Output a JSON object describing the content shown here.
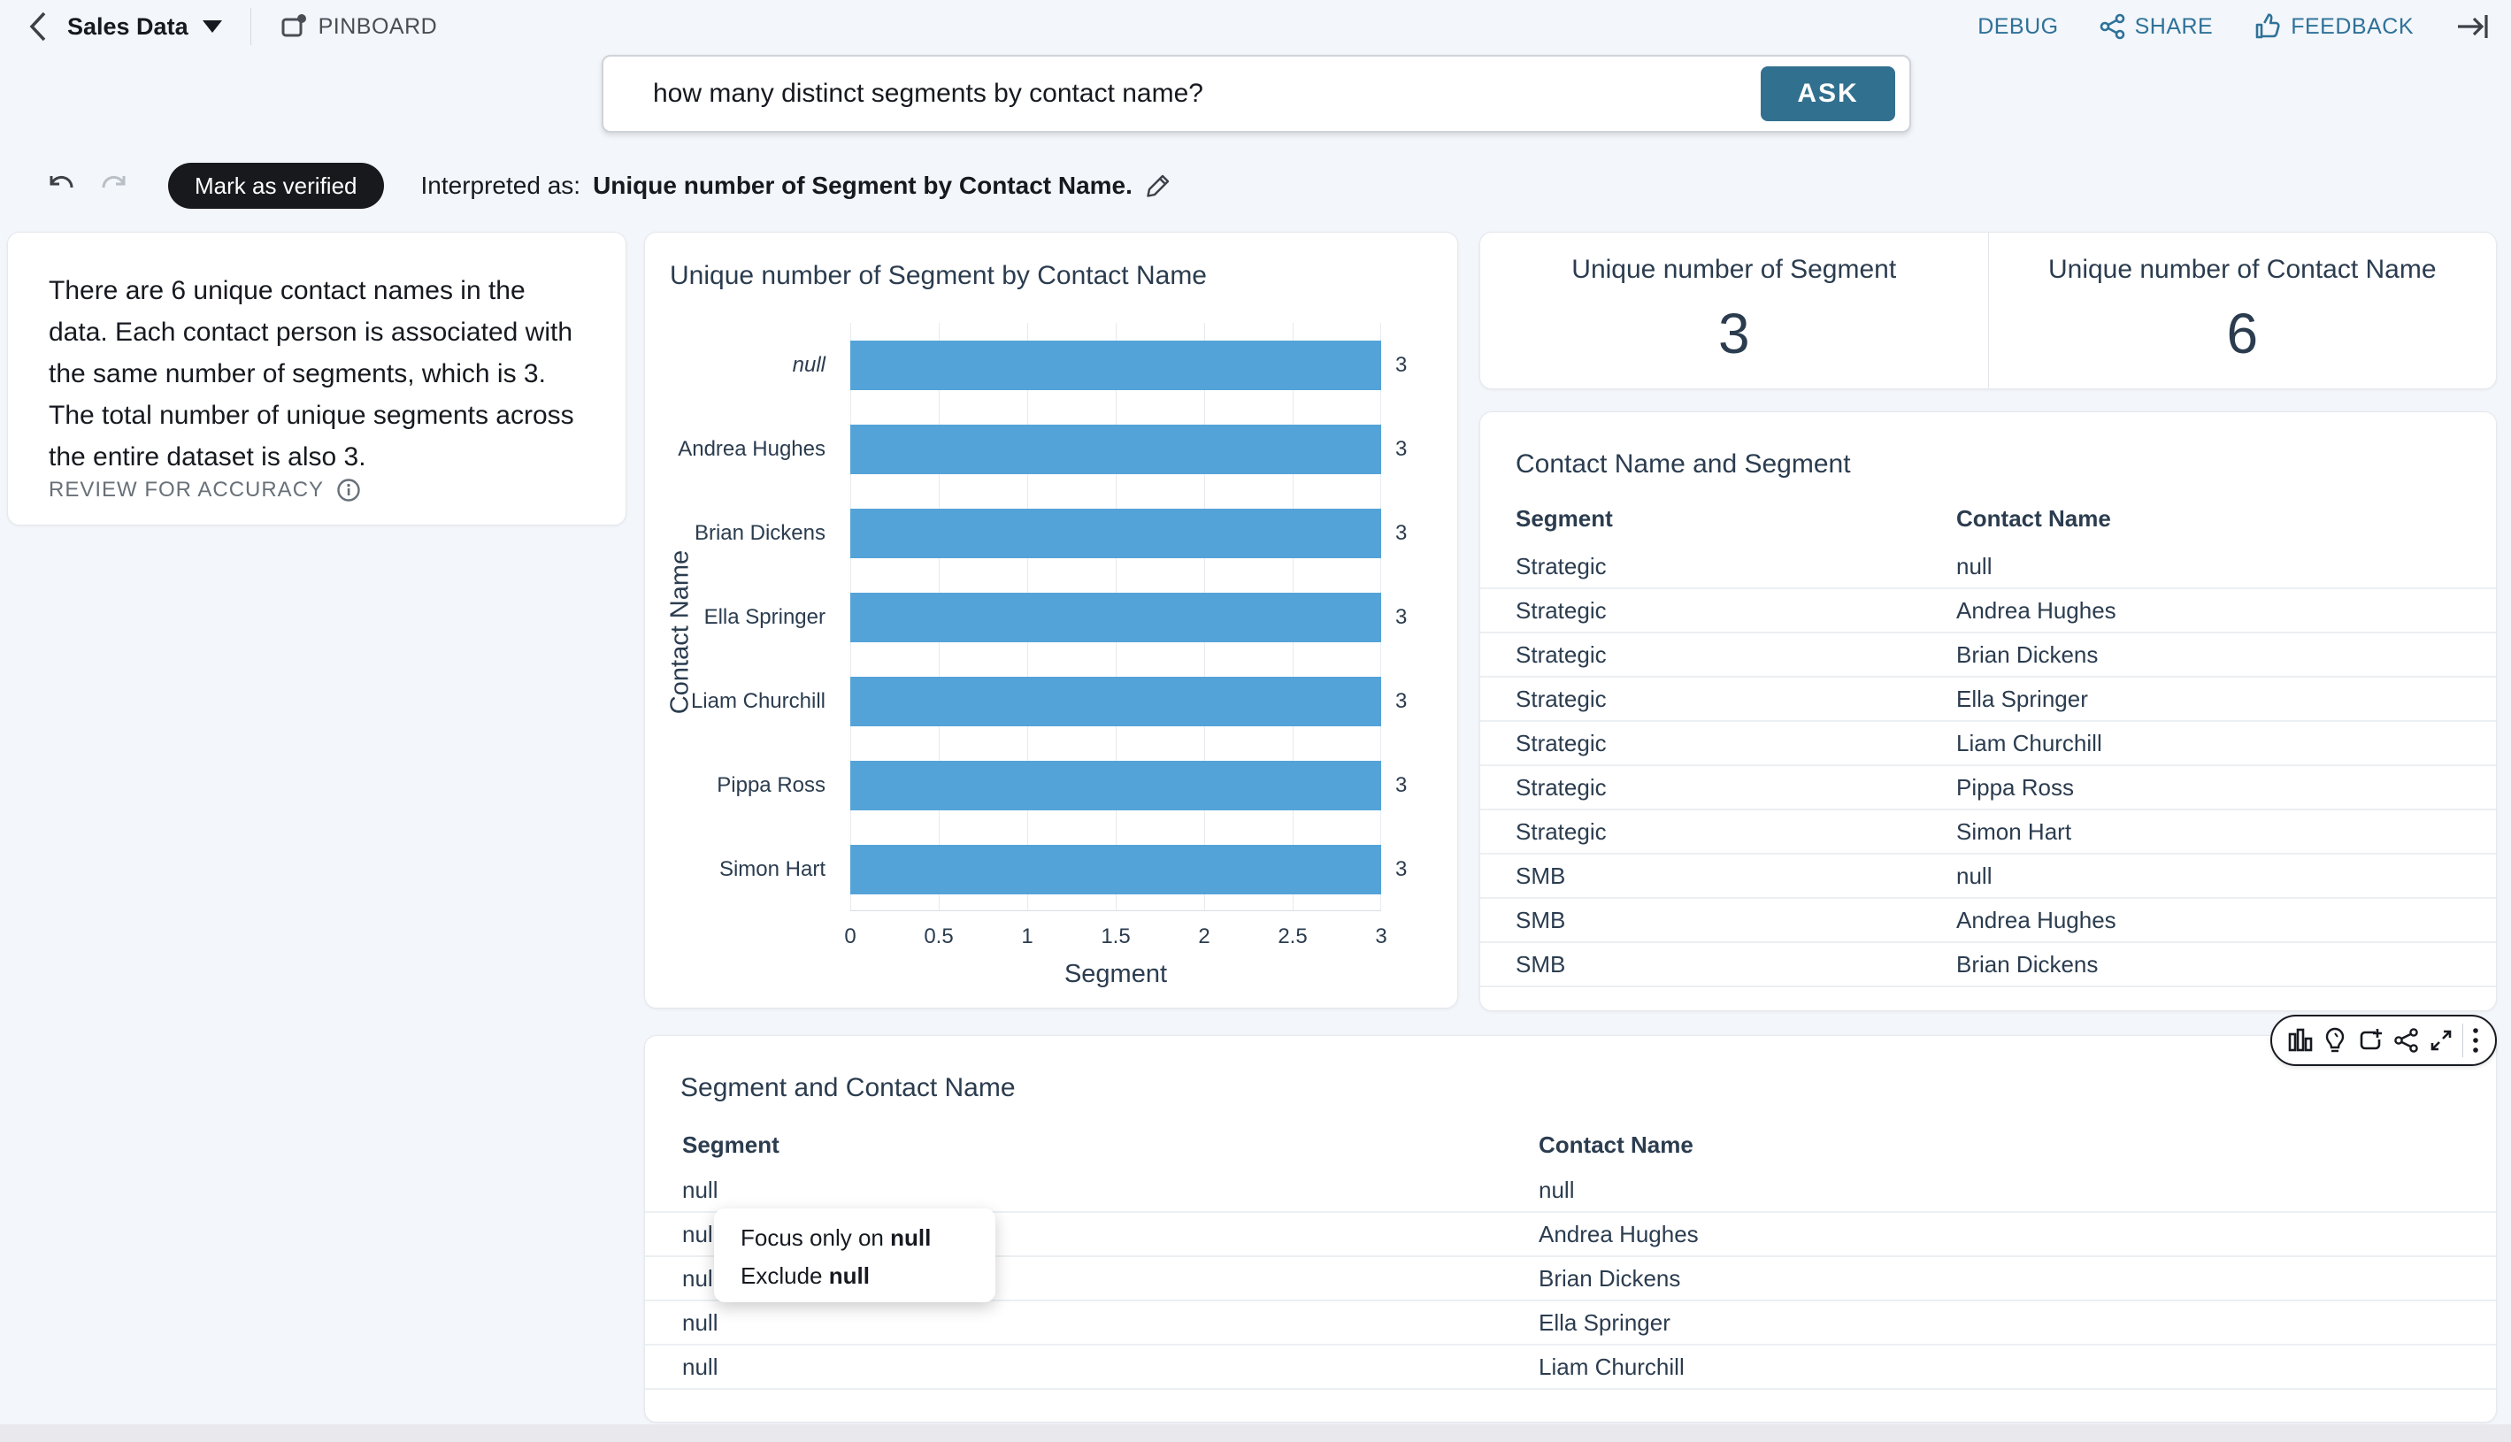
{
  "top_bar": {
    "dataset_name": "Sales Data",
    "pinboard_label": "PINBOARD",
    "debug_label": "DEBUG",
    "share_label": "SHARE",
    "feedback_label": "FEEDBACK"
  },
  "ask": {
    "question": "how many distinct segments by contact name?",
    "ask_button_label": "ASK"
  },
  "interpretation": {
    "verify_button_label": "Mark as verified",
    "prefix": "Interpreted as:",
    "text": "Unique number of Segment by Contact Name."
  },
  "answer_panel": {
    "text": "There are 6 unique contact names in the data. Each contact person is associated with the same number of segments, which is 3. The total number of unique segments across the entire dataset is also 3.",
    "review_label": "REVIEW FOR ACCURACY"
  },
  "chart_data": {
    "type": "bar",
    "orientation": "horizontal",
    "title": "Unique number of Segment by Contact Name",
    "categories": [
      "null",
      "Andrea Hughes",
      "Brian Dickens",
      "Ella Springer",
      "Liam Churchill",
      "Pippa Ross",
      "Simon Hart"
    ],
    "values": [
      3,
      3,
      3,
      3,
      3,
      3,
      3
    ],
    "value_labels": [
      "3",
      "3",
      "3",
      "3",
      "3",
      "3",
      "3"
    ],
    "xlabel": "Segment",
    "ylabel": "Contact Name",
    "xlim": [
      0,
      3
    ],
    "xticks": [
      0,
      0.5,
      1,
      1.5,
      2,
      2.5,
      3
    ],
    "xtick_labels": [
      "0",
      "0.5",
      "1",
      "1.5",
      "2",
      "2.5",
      "3"
    ],
    "grid": true,
    "bar_color": "#54a3d8"
  },
  "kpis": [
    {
      "label": "Unique number of Segment",
      "value": "3"
    },
    {
      "label": "Unique number of Contact Name",
      "value": "6"
    }
  ],
  "contact_segment_table": {
    "title": "Contact Name and Segment",
    "columns": [
      "Segment",
      "Contact Name"
    ],
    "rows": [
      [
        "Strategic",
        "null"
      ],
      [
        "Strategic",
        "Andrea Hughes"
      ],
      [
        "Strategic",
        "Brian Dickens"
      ],
      [
        "Strategic",
        "Ella Springer"
      ],
      [
        "Strategic",
        "Liam Churchill"
      ],
      [
        "Strategic",
        "Pippa Ross"
      ],
      [
        "Strategic",
        "Simon Hart"
      ],
      [
        "SMB",
        "null"
      ],
      [
        "SMB",
        "Andrea Hughes"
      ],
      [
        "SMB",
        "Brian Dickens"
      ]
    ]
  },
  "segment_contact_table": {
    "title": "Segment and Contact Name",
    "columns": [
      "Segment",
      "Contact Name"
    ],
    "rows": [
      [
        "null",
        "null"
      ],
      [
        "null",
        "Andrea Hughes"
      ],
      [
        "null",
        "Brian Dickens"
      ],
      [
        "null",
        "Ella Springer"
      ],
      [
        "null",
        "Liam Churchill"
      ]
    ]
  },
  "context_menu": {
    "items": [
      {
        "prefix": "Focus only on ",
        "bold": "null"
      },
      {
        "prefix": "Exclude ",
        "bold": "null"
      }
    ]
  },
  "toolbar": {
    "icons": [
      "bar-chart-icon",
      "lightbulb-icon",
      "pin-to-board-icon",
      "share-icon",
      "expand-icon",
      "kebab-menu-icon"
    ]
  },
  "colors": {
    "accent_button": "#32708f",
    "bar": "#54a3d8",
    "link_blue": "#2e7299",
    "slate_text": "#2b3c4f",
    "background": "#f3f6fa"
  }
}
